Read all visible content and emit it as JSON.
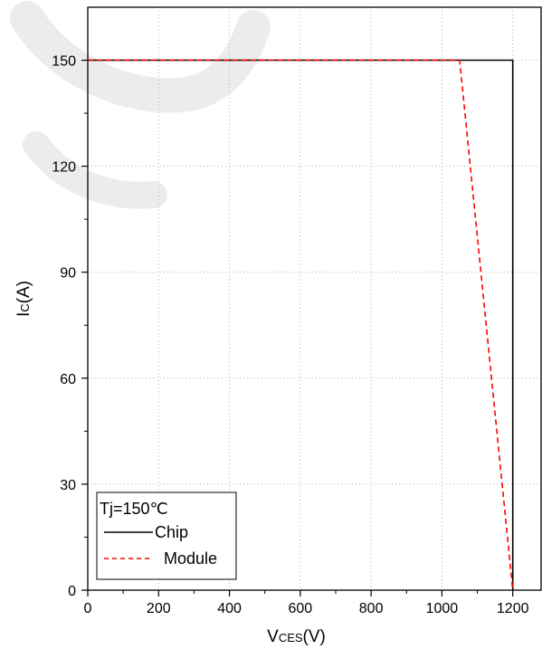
{
  "chart_data": {
    "type": "line",
    "xlabel_main": "V",
    "xlabel_sub": "CES",
    "xlabel_unit": "(V)",
    "ylabel_main": "I",
    "ylabel_sub": "C",
    "ylabel_unit": "(A)",
    "xlim": [
      0,
      1280
    ],
    "ylim": [
      0,
      165
    ],
    "x_ticks": [
      0,
      200,
      400,
      600,
      800,
      1000,
      1200
    ],
    "y_ticks": [
      0,
      30,
      60,
      90,
      120,
      150
    ],
    "grid": true,
    "legend_position": "bottom-left",
    "legend_title": "Tj=150℃",
    "series": [
      {
        "name": "Chip",
        "style": "solid",
        "color": "#000000",
        "x": [
          0,
          1200,
          1200
        ],
        "y": [
          150,
          150,
          0
        ]
      },
      {
        "name": "Module",
        "style": "dashed",
        "color": "#ff0000",
        "x": [
          0,
          1050,
          1200
        ],
        "y": [
          150,
          150,
          0
        ]
      }
    ]
  }
}
